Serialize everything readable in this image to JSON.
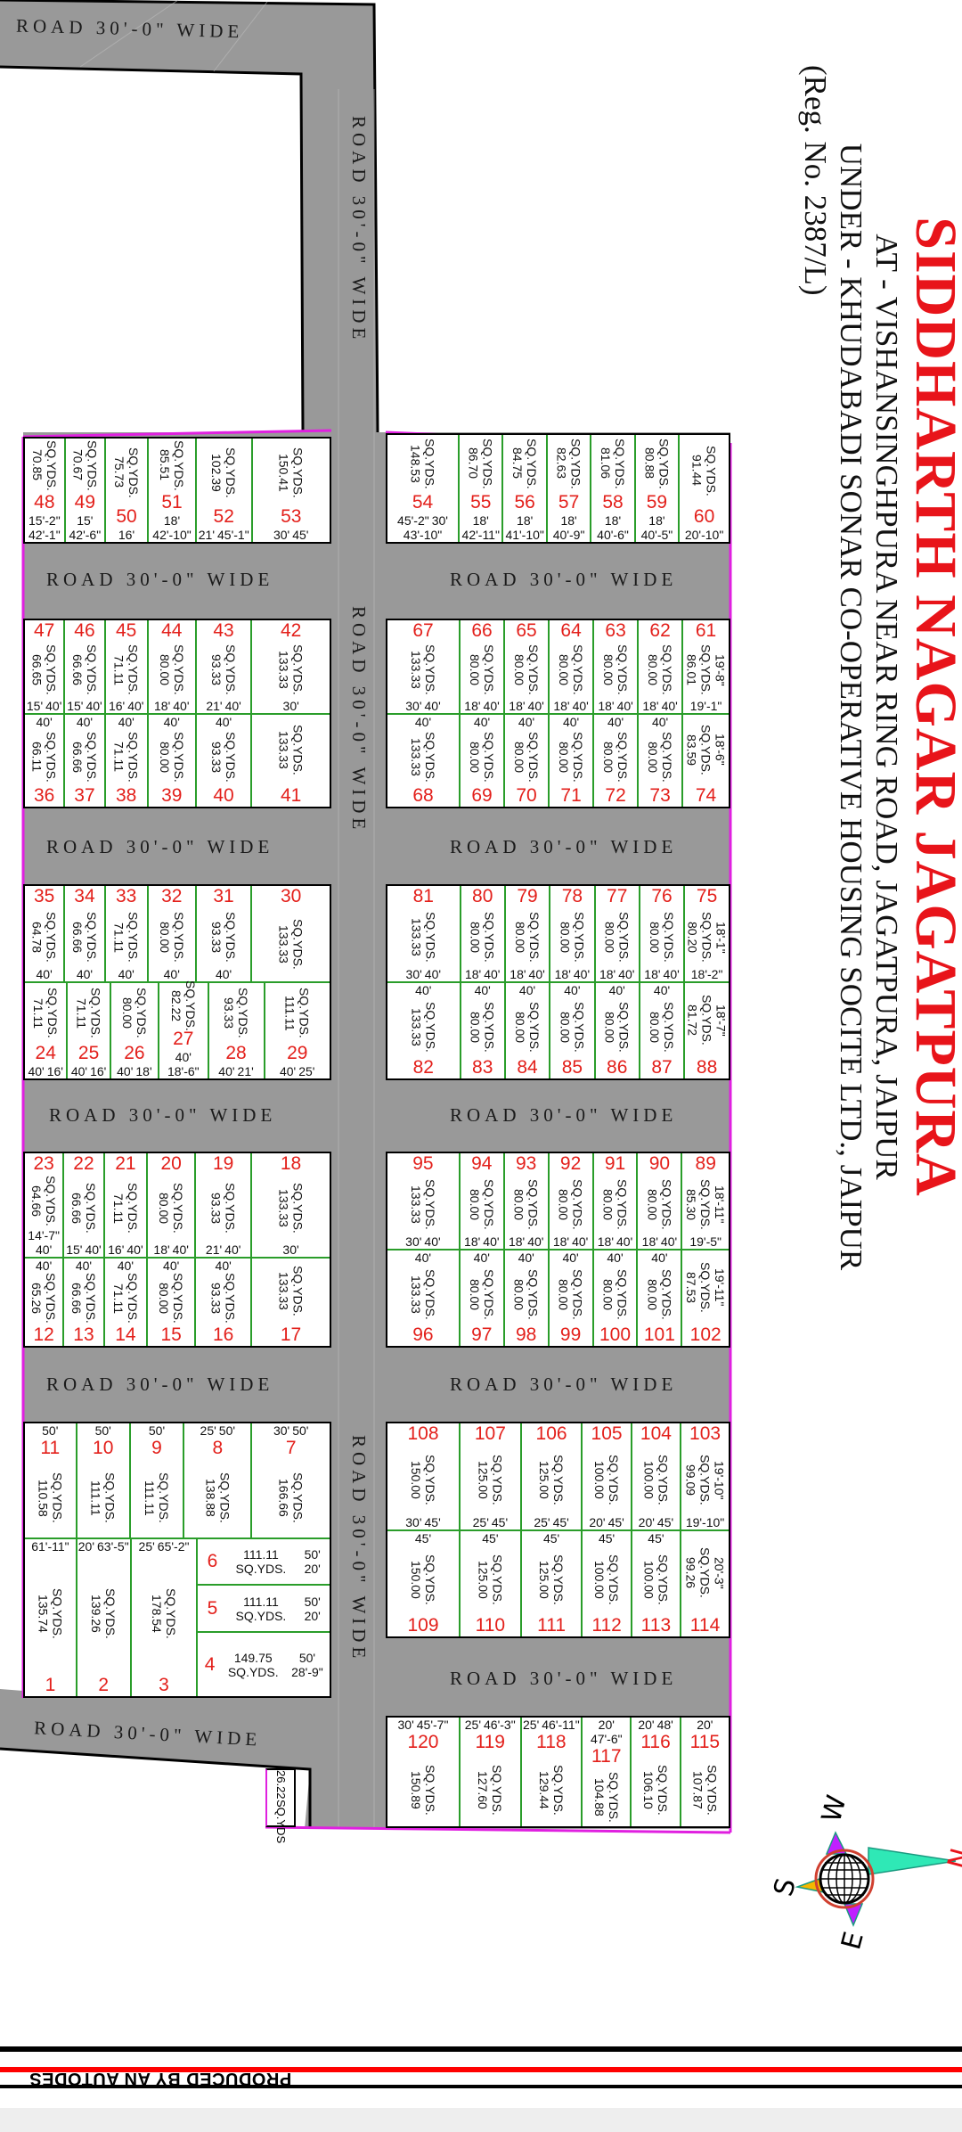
{
  "title": {
    "name": "SIDDHARTH NAGAR JAGATPURA",
    "location": "AT - VISHANSINGHPURA NEAR RING ROAD, JAGATPURA, JAIPUR",
    "society": "UNDER - KHUDABADI SONAR CO-OPERATIVE HOUSING SOCITE LTD., JAIPUR",
    "reg": "(Reg. No. 2387/L)"
  },
  "road_label": "ROAD 30'-0\" WIDE",
  "unit": "SQ.YDS.",
  "colors": {
    "road": "#999999",
    "plot_number": "#e3201b",
    "title": "#e8141a",
    "boundary": "#e020e0",
    "plot_divider": "#2a9d2a"
  },
  "blocks": {
    "a_left": {
      "rows": [
        {
          "plots": [
            {
              "no": "48",
              "area": "70.85",
              "front": "15'-2\"",
              "depth": "42'-1\""
            },
            {
              "no": "49",
              "area": "70.67",
              "front": "15'",
              "depth": "42'-6\""
            },
            {
              "no": "50",
              "area": "75.73",
              "front": "16'"
            },
            {
              "no": "51",
              "area": "85.51",
              "front": "18'",
              "depth": "42'-10\""
            },
            {
              "no": "52",
              "area": "102.39",
              "front": "21'",
              "depth": "45'-1\""
            },
            {
              "no": "53",
              "area": "150.41",
              "front": "30'",
              "depth": "45'"
            }
          ]
        }
      ]
    },
    "a_right": {
      "rows": [
        {
          "plots": [
            {
              "no": "54",
              "area": "148.53",
              "front": "30'",
              "ldepth": "45'-2\"",
              "depth": "43'-10\""
            },
            {
              "no": "55",
              "area": "86.70",
              "front": "18'",
              "depth": "42'-11\""
            },
            {
              "no": "56",
              "area": "84.75",
              "front": "18'",
              "depth": "41'-10\""
            },
            {
              "no": "57",
              "area": "82.63",
              "front": "18'",
              "depth": "40'-9\""
            },
            {
              "no": "58",
              "area": "81.06",
              "front": "18'",
              "depth": "40'-6\""
            },
            {
              "no": "59",
              "area": "80.88",
              "front": "18'",
              "depth": "40'-5\""
            },
            {
              "no": "60",
              "area": "91.44",
              "front": "20'-10\""
            }
          ]
        }
      ]
    },
    "b_left": {
      "rows": [
        {
          "plots": [
            {
              "no": "47",
              "area": "66.65",
              "front": "15'",
              "depth": "40'"
            },
            {
              "no": "46",
              "area": "66.66",
              "front": "15'",
              "depth": "40'"
            },
            {
              "no": "45",
              "area": "71.11",
              "front": "16'",
              "depth": "40'"
            },
            {
              "no": "44",
              "area": "80.00",
              "front": "18'",
              "depth": "40'"
            },
            {
              "no": "43",
              "area": "93.33",
              "front": "21'",
              "depth": "40'"
            },
            {
              "no": "42",
              "area": "133.33",
              "front": "30'"
            }
          ]
        },
        {
          "plots": [
            {
              "no": "36",
              "area": "66.11",
              "depth": "40'"
            },
            {
              "no": "37",
              "area": "66.66",
              "depth": "40'"
            },
            {
              "no": "38",
              "area": "71.11",
              "depth": "40'"
            },
            {
              "no": "39",
              "area": "80.00",
              "depth": "40'"
            },
            {
              "no": "40",
              "area": "93.33",
              "depth": "40'"
            },
            {
              "no": "41",
              "area": "133.33"
            }
          ]
        }
      ]
    },
    "b_right": {
      "rows": [
        {
          "plots": [
            {
              "no": "67",
              "area": "133.33",
              "front": "30'",
              "depth": "40'"
            },
            {
              "no": "66",
              "area": "80.00",
              "front": "18'",
              "depth": "40'"
            },
            {
              "no": "65",
              "area": "80.00",
              "front": "18'",
              "depth": "40'"
            },
            {
              "no": "64",
              "area": "80.00",
              "front": "18'",
              "depth": "40'"
            },
            {
              "no": "63",
              "area": "80.00",
              "front": "18'",
              "depth": "40'"
            },
            {
              "no": "62",
              "area": "80.00",
              "front": "18'",
              "depth": "40'"
            },
            {
              "no": "61",
              "area": "86.01",
              "front": "19'-1\"",
              "edge": "19'-8\""
            }
          ]
        },
        {
          "plots": [
            {
              "no": "68",
              "area": "133.33",
              "depth": "40'"
            },
            {
              "no": "69",
              "area": "80.00",
              "depth": "40'"
            },
            {
              "no": "70",
              "area": "80.00",
              "depth": "40'"
            },
            {
              "no": "71",
              "area": "80.00",
              "depth": "40'"
            },
            {
              "no": "72",
              "area": "80.00",
              "depth": "40'"
            },
            {
              "no": "73",
              "area": "80.00",
              "depth": "40'"
            },
            {
              "no": "74",
              "area": "83.59",
              "edge": "18'-6\""
            }
          ]
        }
      ]
    },
    "c_left": {
      "rows": [
        {
          "plots": [
            {
              "no": "35",
              "area": "64.78",
              "depth": "40'"
            },
            {
              "no": "34",
              "area": "66.66",
              "depth": "40'"
            },
            {
              "no": "33",
              "area": "71.11",
              "depth": "40'"
            },
            {
              "no": "32",
              "area": "80.00",
              "depth": "40'"
            },
            {
              "no": "31",
              "area": "93.33",
              "depth": "40'"
            },
            {
              "no": "30",
              "area": "133.33"
            }
          ]
        },
        {
          "plots": [
            {
              "no": "24",
              "area": "71.11",
              "front": "16'",
              "ldepth": "40'"
            },
            {
              "no": "25",
              "area": "71.11",
              "front": "16'",
              "ldepth": "40'"
            },
            {
              "no": "26",
              "area": "80.00",
              "front": "18'",
              "ldepth": "40'"
            },
            {
              "no": "27",
              "area": "82.22",
              "front": "18'-6\"",
              "ldepth": "40'"
            },
            {
              "no": "28",
              "area": "93.33",
              "front": "21'",
              "ldepth": "40'"
            },
            {
              "no": "29",
              "area": "111.11",
              "front": "25'",
              "ldepth": "40'"
            }
          ]
        }
      ]
    },
    "c_right": {
      "rows": [
        {
          "plots": [
            {
              "no": "81",
              "area": "133.33",
              "front": "30'",
              "depth": "40'"
            },
            {
              "no": "80",
              "area": "80.00",
              "front": "18'",
              "depth": "40'"
            },
            {
              "no": "79",
              "area": "80.00",
              "front": "18'",
              "depth": "40'"
            },
            {
              "no": "78",
              "area": "80.00",
              "front": "18'",
              "depth": "40'"
            },
            {
              "no": "77",
              "area": "80.00",
              "front": "18'",
              "depth": "40'"
            },
            {
              "no": "76",
              "area": "80.00",
              "front": "18'",
              "depth": "40'"
            },
            {
              "no": "75",
              "area": "80.20",
              "front": "18'-2\"",
              "edge": "18'-1\""
            }
          ]
        },
        {
          "plots": [
            {
              "no": "82",
              "area": "133.33",
              "depth": "40'"
            },
            {
              "no": "83",
              "area": "80.00",
              "depth": "40'"
            },
            {
              "no": "84",
              "area": "80.00",
              "depth": "40'"
            },
            {
              "no": "85",
              "area": "80.00",
              "depth": "40'"
            },
            {
              "no": "86",
              "area": "80.00",
              "depth": "40'"
            },
            {
              "no": "87",
              "area": "80.00",
              "depth": "40'"
            },
            {
              "no": "88",
              "area": "81.72",
              "edge": "18'-7\""
            }
          ]
        }
      ]
    },
    "d_left": {
      "rows": [
        {
          "plots": [
            {
              "no": "23",
              "area": "64.66",
              "front": "14'-7\"",
              "depth": "40'"
            },
            {
              "no": "22",
              "area": "66.66",
              "front": "15'",
              "depth": "40'"
            },
            {
              "no": "21",
              "area": "71.11",
              "front": "16'",
              "depth": "40'"
            },
            {
              "no": "20",
              "area": "80.00",
              "front": "18'",
              "depth": "40'"
            },
            {
              "no": "19",
              "area": "93.33",
              "front": "21'",
              "depth": "40'"
            },
            {
              "no": "18",
              "area": "133.33",
              "front": "30'"
            }
          ]
        },
        {
          "plots": [
            {
              "no": "12",
              "area": "65.26",
              "depth": "40'"
            },
            {
              "no": "13",
              "area": "66.66",
              "depth": "40'"
            },
            {
              "no": "14",
              "area": "71.11",
              "depth": "40'"
            },
            {
              "no": "15",
              "area": "80.00",
              "depth": "40'"
            },
            {
              "no": "16",
              "area": "93.33",
              "depth": "40'"
            },
            {
              "no": "17",
              "area": "133.33"
            }
          ]
        }
      ]
    },
    "d_right": {
      "rows": [
        {
          "plots": [
            {
              "no": "95",
              "area": "133.33",
              "front": "30'",
              "depth": "40'"
            },
            {
              "no": "94",
              "area": "80.00",
              "front": "18'",
              "depth": "40'"
            },
            {
              "no": "93",
              "area": "80.00",
              "front": "18'",
              "depth": "40'"
            },
            {
              "no": "92",
              "area": "80.00",
              "front": "18'",
              "depth": "40'"
            },
            {
              "no": "91",
              "area": "80.00",
              "front": "18'",
              "depth": "40'"
            },
            {
              "no": "90",
              "area": "80.00",
              "front": "18'",
              "depth": "40'"
            },
            {
              "no": "89",
              "area": "85.30",
              "front": "19'-5\"",
              "edge": "18'-11\""
            }
          ]
        },
        {
          "plots": [
            {
              "no": "96",
              "area": "133.33",
              "depth": "40'"
            },
            {
              "no": "97",
              "area": "80.00",
              "depth": "40'"
            },
            {
              "no": "98",
              "area": "80.00",
              "depth": "40'"
            },
            {
              "no": "99",
              "area": "80.00",
              "depth": "40'"
            },
            {
              "no": "100",
              "area": "80.00",
              "depth": "40'"
            },
            {
              "no": "101",
              "area": "80.00",
              "depth": "40'"
            },
            {
              "no": "102",
              "area": "87.53",
              "edge": "19'-11\""
            }
          ]
        }
      ]
    },
    "e_left": {
      "rows": [
        {
          "plots": [
            {
              "no": "11",
              "area": "110.58",
              "depth": "50'"
            },
            {
              "no": "10",
              "area": "111.11",
              "depth": "50'"
            },
            {
              "no": "9",
              "area": "111.11",
              "depth": "50'"
            },
            {
              "no": "8",
              "area": "138.88",
              "front": "25'",
              "depth": "50'"
            },
            {
              "no": "7",
              "area": "166.66",
              "front": "30'",
              "depth": "50'"
            }
          ]
        },
        {
          "plots": [
            {
              "no": "1",
              "area": "135.74",
              "depth": "61'-11\""
            },
            {
              "no": "2",
              "area": "139.26",
              "front": "20'",
              "depth": "63'-5\""
            },
            {
              "no": "3",
              "area": "178.54",
              "front": "25'",
              "depth": "65'-2\""
            },
            {
              "stack": [
                {
                  "no": "6",
                  "area": "111.11",
                  "front": "50'",
                  "depth": "20'"
                },
                {
                  "no": "5",
                  "area": "111.11",
                  "front": "50'",
                  "depth": "20'"
                },
                {
                  "no": "4",
                  "area": "149.75",
                  "front": "50'",
                  "depth": "28'-9\""
                }
              ]
            }
          ]
        }
      ]
    },
    "e_right": {
      "rows": [
        {
          "plots": [
            {
              "no": "108",
              "area": "150.00",
              "front": "30'",
              "depth": "45'"
            },
            {
              "no": "107",
              "area": "125.00",
              "front": "25'",
              "depth": "45'"
            },
            {
              "no": "106",
              "area": "125.00",
              "front": "25'",
              "depth": "45'"
            },
            {
              "no": "105",
              "area": "100.00",
              "front": "20'",
              "depth": "45'"
            },
            {
              "no": "104",
              "area": "100.00",
              "front": "20'",
              "depth": "45'"
            },
            {
              "no": "103",
              "area": "99.09",
              "front": "19'-10\"",
              "edge": "19'-10\""
            }
          ]
        },
        {
          "plots": [
            {
              "no": "109",
              "area": "150.00",
              "depth": "45'"
            },
            {
              "no": "110",
              "area": "125.00",
              "depth": "45'"
            },
            {
              "no": "111",
              "area": "125.00",
              "depth": "45'"
            },
            {
              "no": "112",
              "area": "100.00",
              "depth": "45'"
            },
            {
              "no": "113",
              "area": "100.00",
              "depth": "45'"
            },
            {
              "no": "114",
              "area": "99.26",
              "edge": "20'-3\""
            }
          ]
        }
      ]
    },
    "f_right": {
      "rows": [
        {
          "plots": [
            {
              "no": "120",
              "area": "150.89",
              "front": "30'",
              "depth": "45'-7\""
            },
            {
              "no": "119",
              "area": "127.60",
              "front": "25'",
              "depth": "46'-3\""
            },
            {
              "no": "118",
              "area": "129.44",
              "front": "25'",
              "depth": "46'-11\""
            },
            {
              "no": "117",
              "area": "104.88",
              "front": "20'",
              "depth": "47'-6\""
            },
            {
              "no": "116",
              "area": "106.10",
              "front": "20'",
              "depth": "48'"
            },
            {
              "no": "115",
              "area": "107.87",
              "front": "20'"
            }
          ]
        }
      ]
    }
  },
  "small_plot": {
    "area": "26.22",
    "unit": "SQ.YDS"
  },
  "compass": {
    "n": "N",
    "s": "S",
    "e": "E",
    "w": "W"
  },
  "banner": {
    "text": "PRODUCED BY AN AUTODES"
  }
}
